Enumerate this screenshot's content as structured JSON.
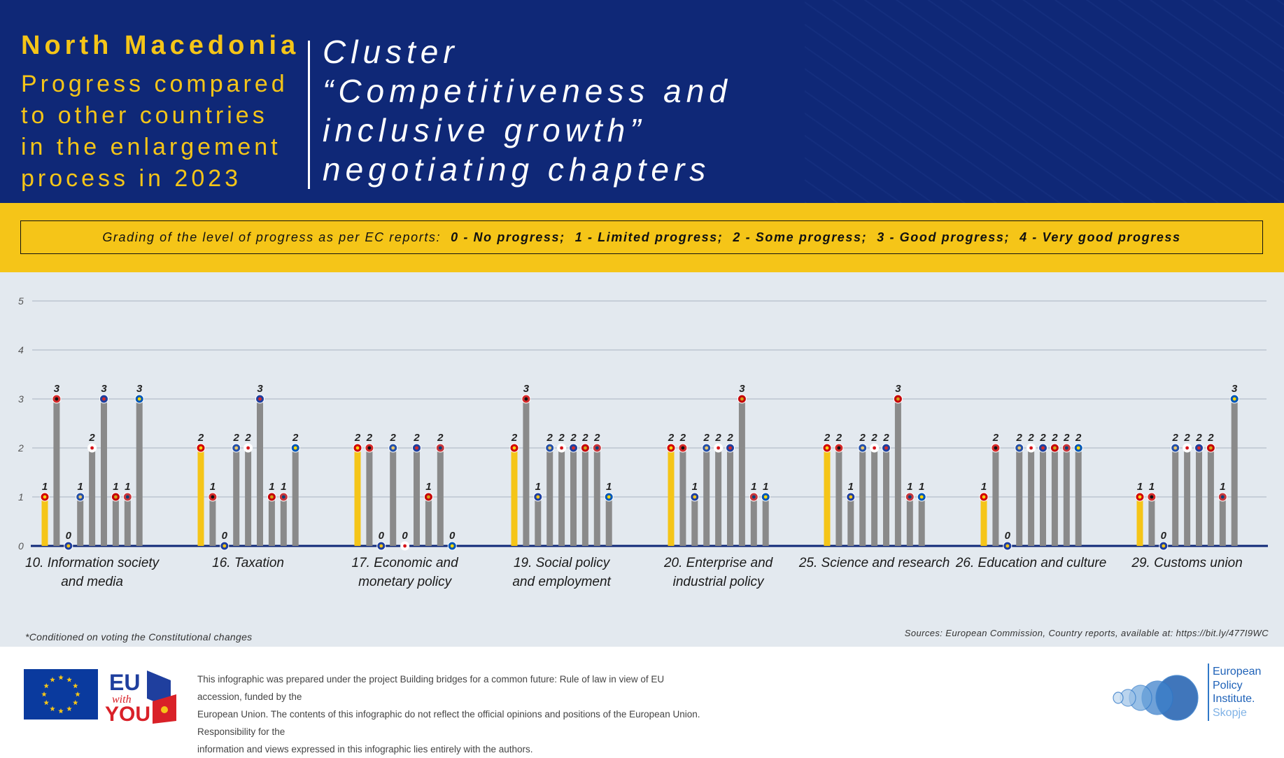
{
  "header": {
    "country": "North Macedonia",
    "subtitle": "Progress compared\nto other countries\nin the enlargement\nprocess in 2023",
    "title": "Cluster\n“Competitiveness and\ninclusive growth”\nnegotiating chapters"
  },
  "legend_band": {
    "intro": "Grading of the level of progress as per EC reports:",
    "items": [
      "0 - No progress;",
      "1 - Limited progress;",
      "2 - Some progress;",
      "3 - Good progress;",
      "4 - Very good progress"
    ]
  },
  "colors": {
    "header_bg": "#0f2877",
    "accent_yellow": "#f5c518",
    "bar_grey": "#8a8a8a",
    "chart_bg": "#e3e9ef",
    "axis_line": "#0f2877"
  },
  "chart_data": {
    "type": "bar",
    "ylim": [
      0,
      5
    ],
    "yticks": [
      0,
      1,
      2,
      3,
      4,
      5
    ],
    "grid": true,
    "highlight_series": 0,
    "marker_icons": [
      "north-macedonia-flag",
      "albania-flag",
      "bosnia-herzegovina-flag",
      "kosovo-flag",
      "georgia-flag",
      "moldova-flag",
      "montenegro-flag",
      "serbia-flag",
      "ukraine-flag"
    ],
    "categories": [
      {
        "label": "10. Information society\nand media",
        "values": [
          1,
          3,
          0,
          1,
          2,
          3,
          1,
          1,
          3
        ]
      },
      {
        "label": "16. Taxation",
        "values": [
          2,
          1,
          0,
          2,
          2,
          3,
          1,
          1,
          2
        ]
      },
      {
        "label": "17. Economic and\nmonetary policy",
        "values": [
          2,
          2,
          0,
          2,
          0,
          2,
          1,
          2,
          0
        ]
      },
      {
        "label": "19. Social policy\nand employment",
        "values": [
          2,
          3,
          1,
          2,
          2,
          2,
          2,
          2,
          1
        ]
      },
      {
        "label": "20. Enterprise and\nindustrial policy",
        "values": [
          2,
          2,
          1,
          2,
          2,
          2,
          3,
          1,
          1
        ]
      },
      {
        "label": "25. Science and research",
        "values": [
          2,
          2,
          1,
          2,
          2,
          2,
          3,
          1,
          1
        ]
      },
      {
        "label": "26. Education and culture",
        "values": [
          1,
          2,
          0,
          2,
          2,
          2,
          2,
          2,
          2
        ]
      },
      {
        "label": "29. Customs union",
        "values": [
          1,
          1,
          0,
          2,
          2,
          2,
          2,
          1,
          3
        ]
      }
    ]
  },
  "footnote": "*Conditioned on voting the Constitutional changes",
  "sources": "Sources: European Commission, Country reports, available at: https://bit.ly/477I9WC",
  "footer": {
    "eu_logo_text": "EU",
    "eu_logo_with": "with",
    "eu_logo_you": "YOU",
    "disclaimer": "This infographic was prepared under the project Building bridges for a common future: Rule of law in view of EU accession, funded by the\nEuropean Union. The contents of this infographic do not reflect the official opinions and positions of the European Union. Responsibility for the\ninformation and views expressed in this infographic lies entirely with the authors.",
    "org_line1": "European",
    "org_line2": "Policy",
    "org_line3": "Institute.",
    "org_city": "Skopje"
  }
}
